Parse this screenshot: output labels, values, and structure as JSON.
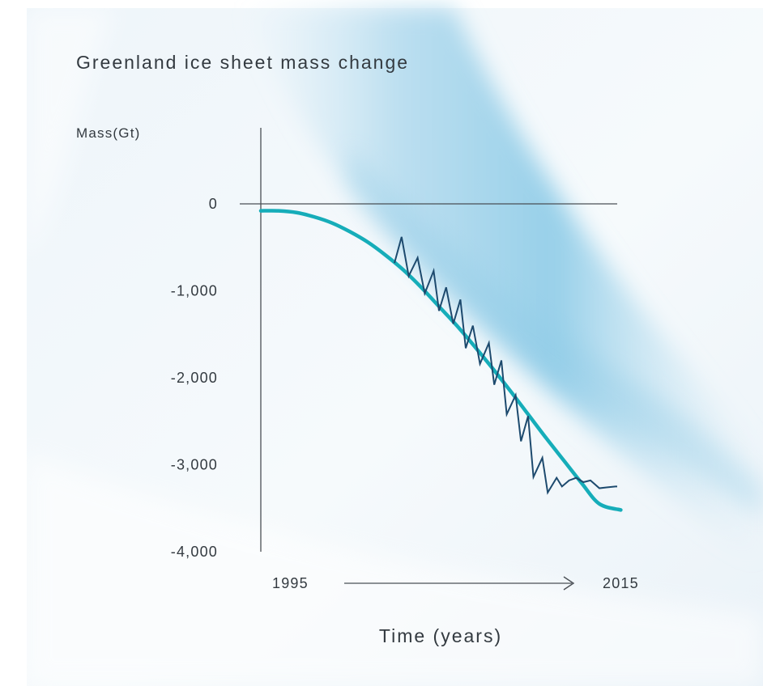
{
  "chart_data": {
    "type": "line",
    "title": "Greenland ice sheet mass change",
    "ylabel": "Mass(Gt)",
    "xlabel": "Time (years)",
    "x_start_label": "1995",
    "x_end_label": "2015",
    "xlim": [
      1995,
      2015
    ],
    "ylim": [
      -4000,
      0
    ],
    "y_ticks": [
      {
        "value": 0,
        "label": "0"
      },
      {
        "value": -1000,
        "label": "-1,000"
      },
      {
        "value": -2000,
        "label": "-2,000"
      },
      {
        "value": -3000,
        "label": "-3,000"
      },
      {
        "value": -4000,
        "label": "-4,000"
      }
    ],
    "grid": false,
    "legend": "none",
    "series": [
      {
        "color": "#16adb9",
        "x": [
          1995.0,
          1996.0,
          1997.0,
          1998.0,
          1999.0,
          2000.0,
          2001.0,
          2002.0,
          2003.0,
          2004.0,
          2005.0,
          2006.0,
          2007.0,
          2008.0,
          2009.0,
          2010.0,
          2011.0,
          2012.0,
          2013.0,
          2014.0,
          2015.2
        ],
        "y": [
          -80,
          -80,
          -100,
          -150,
          -220,
          -320,
          -440,
          -590,
          -760,
          -960,
          -1180,
          -1400,
          -1640,
          -1890,
          -2150,
          -2420,
          -2690,
          -2950,
          -3210,
          -3450,
          -3520
        ]
      },
      {
        "color": "#1d4a6e",
        "x": [
          2002.5,
          2002.9,
          2003.3,
          2003.8,
          2004.2,
          2004.7,
          2005.0,
          2005.4,
          2005.8,
          2006.2,
          2006.5,
          2006.9,
          2007.3,
          2007.8,
          2008.1,
          2008.5,
          2008.8,
          2009.3,
          2009.6,
          2010.0,
          2010.3,
          2010.8,
          2011.1,
          2011.6,
          2011.9,
          2012.3,
          2012.7,
          2013.1,
          2013.5,
          2014.0,
          2014.4,
          2014.9,
          2015.0
        ],
        "y": [
          -680,
          -380,
          -830,
          -620,
          -1030,
          -770,
          -1230,
          -960,
          -1380,
          -1100,
          -1660,
          -1400,
          -1840,
          -1600,
          -2080,
          -1800,
          -2420,
          -2200,
          -2730,
          -2440,
          -3140,
          -2920,
          -3320,
          -3150,
          -3250,
          -3180,
          -3150,
          -3200,
          -3180,
          -3270,
          -3260,
          -3250,
          -3250
        ]
      }
    ]
  },
  "background": {
    "ice_light": "#eef5fa",
    "ice_blue": "#a9d6ec",
    "ice_deep": "#86c8e6"
  },
  "colors": {
    "axis": "#4a4f55",
    "text": "#333a40"
  }
}
